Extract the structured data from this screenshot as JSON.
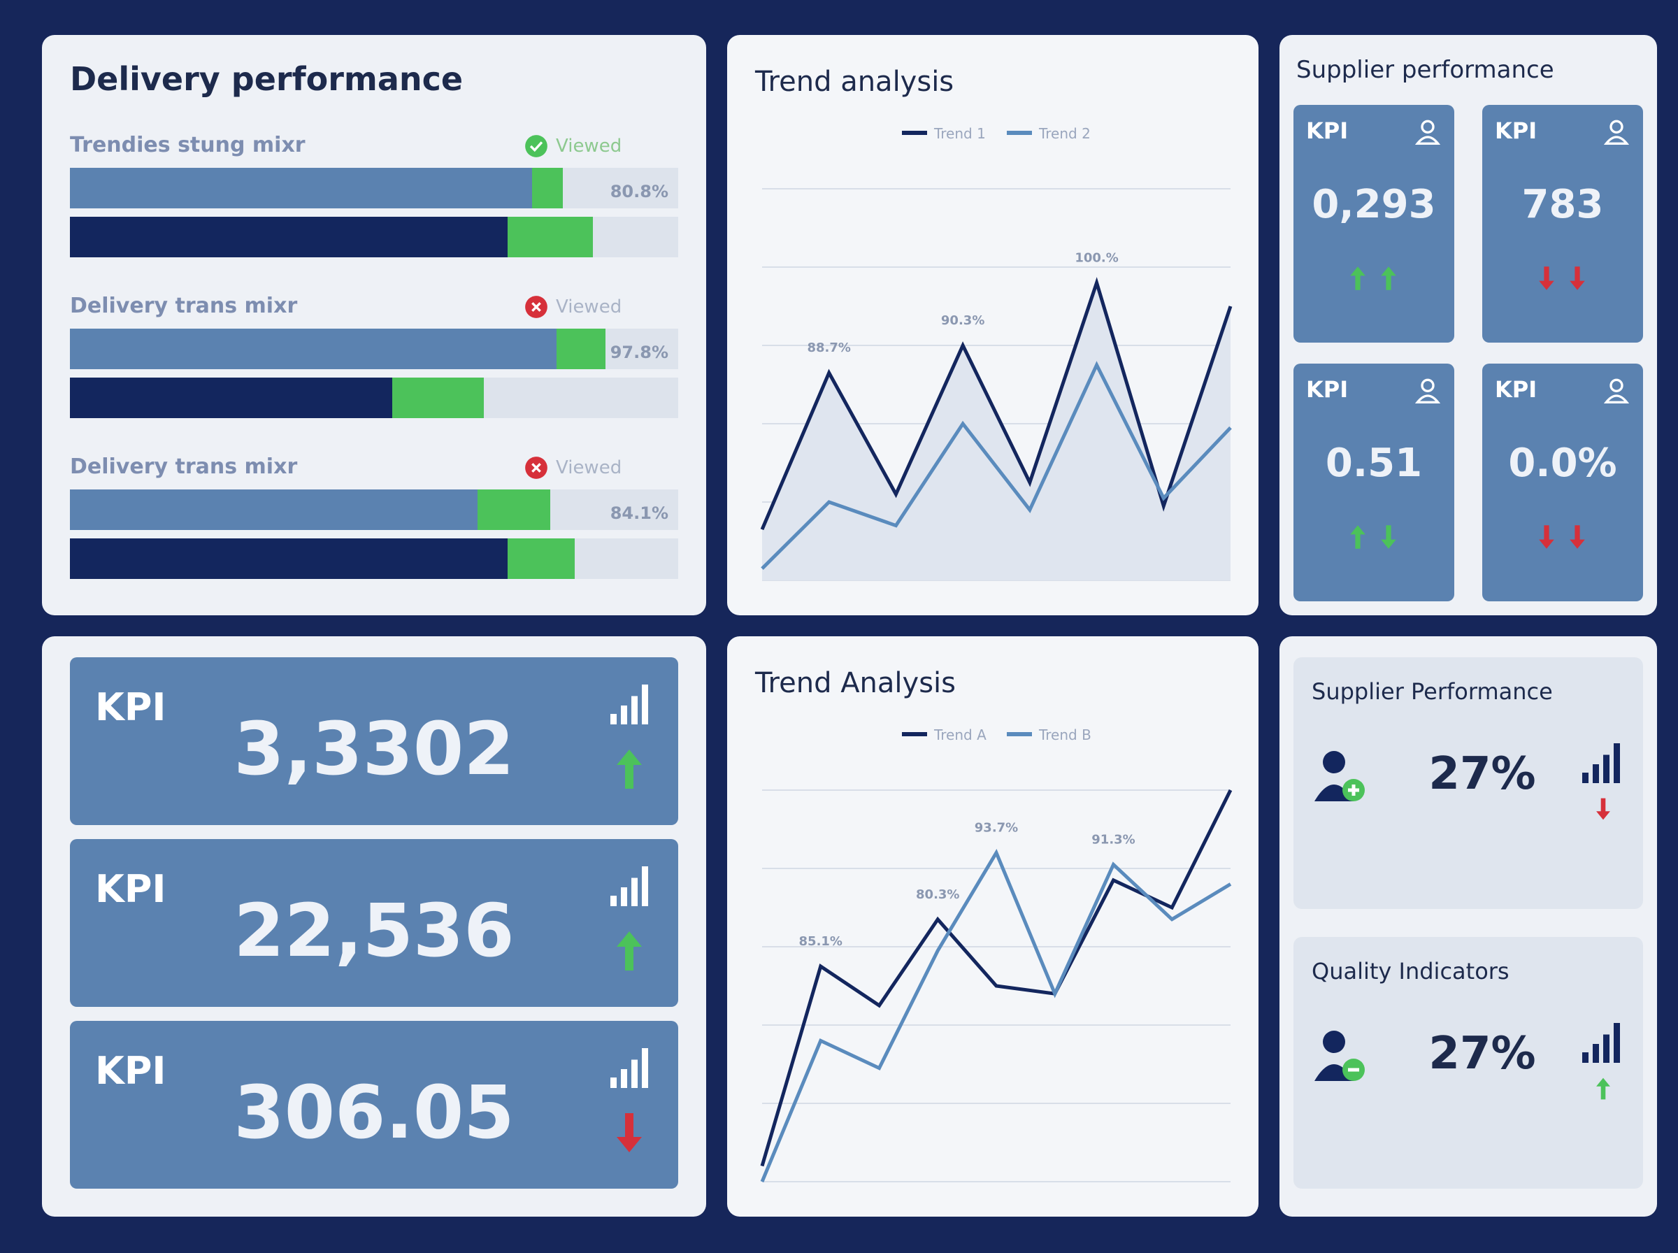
{
  "delivery": {
    "title": "Delivery performance",
    "groups": [
      {
        "label": "Trendies stung mixr",
        "status": "Viewed",
        "ok": true,
        "percent": "80.8%",
        "bars": [
          {
            "main": 76,
            "extra": 5
          },
          {
            "main": 72,
            "extra": 14
          }
        ]
      },
      {
        "label": "Delivery trans mixr",
        "status": "Viewed",
        "ok": false,
        "percent": "97.8%",
        "bars": [
          {
            "main": 80,
            "extra": 8
          },
          {
            "main": 53,
            "extra": 15
          }
        ]
      },
      {
        "label": "Delivery trans mixr",
        "status": "Viewed",
        "ok": false,
        "percent": "84.1%",
        "bars": [
          {
            "main": 67,
            "extra": 12
          },
          {
            "main": 72,
            "extra": 11
          }
        ]
      }
    ]
  },
  "kpi_cards": [
    {
      "label": "KPI",
      "value": "3,3302",
      "trend": "up"
    },
    {
      "label": "KPI",
      "value": "22,536",
      "trend": "up"
    },
    {
      "label": "KPI",
      "value": "306.05",
      "trend": "down"
    }
  ],
  "chart_data": [
    {
      "type": "line",
      "title": "Trend analysis",
      "series": [
        {
          "name": "Trend 1",
          "color": "#13265e",
          "values": [
            13,
            53,
            22,
            60,
            25,
            76,
            19,
            70
          ]
        },
        {
          "name": "Trend 2",
          "color": "#5a8bbd",
          "values": [
            3,
            20,
            14,
            40,
            18,
            55,
            21,
            39
          ]
        }
      ],
      "ylim": [
        0,
        100
      ],
      "yticks": [
        0,
        20,
        40,
        60,
        80,
        100
      ],
      "grid": true,
      "area": true,
      "annotations": [
        {
          "text": "88.7%",
          "series": 0,
          "point": 1
        },
        {
          "text": "90.3%",
          "series": 0,
          "point": 3
        },
        {
          "text": "100.%",
          "series": 0,
          "point": 5
        }
      ]
    },
    {
      "type": "line",
      "title": "Trend Analysis",
      "series": [
        {
          "name": "Trend A",
          "color": "#13265e",
          "values": [
            4,
            55,
            45,
            67,
            50,
            48,
            77,
            70,
            100
          ]
        },
        {
          "name": "Trend B",
          "color": "#5a8bbd",
          "values": [
            0,
            36,
            29,
            59,
            84,
            48,
            81,
            67,
            76
          ]
        }
      ],
      "ylim": [
        0,
        100
      ],
      "yticks": [
        0,
        20,
        40,
        60,
        80,
        100
      ],
      "grid": true,
      "area": false,
      "annotations": [
        {
          "text": "85.1%",
          "series": 0,
          "point": 1
        },
        {
          "text": "80.3%",
          "series": 0,
          "point": 3
        },
        {
          "text": "93.7%",
          "series": 1,
          "point": 4
        },
        {
          "text": "91.3%",
          "series": 1,
          "point": 6
        }
      ]
    }
  ],
  "supplier": {
    "title": "Supplier performance",
    "tiles": [
      {
        "label": "KPI",
        "value": "0,293",
        "trend": [
          "up",
          "up"
        ],
        "color": "#4cc25a"
      },
      {
        "label": "KPI",
        "value": "783",
        "trend": [
          "down",
          "down"
        ],
        "color": "#d6303a"
      },
      {
        "label": "KPI",
        "value": "0.51",
        "trend": [
          "up",
          "down"
        ],
        "color": "#4cc25a"
      },
      {
        "label": "KPI",
        "value": "0.0%",
        "trend": [
          "down",
          "down"
        ],
        "color": "#d6303a"
      }
    ]
  },
  "stats": [
    {
      "title": "Supplier Performance",
      "value": "27%",
      "trend": "down",
      "badge": "plus"
    },
    {
      "title": "Quality Indicators",
      "value": "27%",
      "trend": "up",
      "badge": "minus"
    }
  ]
}
